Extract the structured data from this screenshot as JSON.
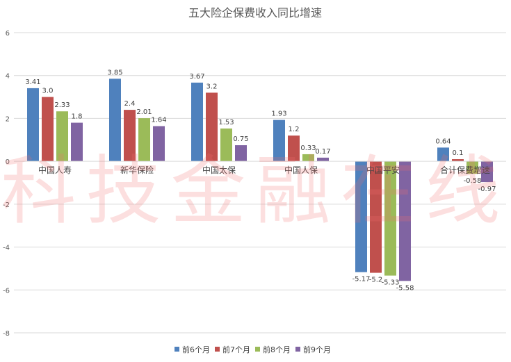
{
  "watermark": "科技金融在线",
  "chart_data": {
    "type": "bar",
    "title": "五大险企保费收入同比增速",
    "xlabel": "",
    "ylabel": "",
    "categories": [
      "中国人寿",
      "新华保险",
      "中国太保",
      "中国人保",
      "中国平安",
      "合计保费增速"
    ],
    "series": [
      {
        "name": "前6个月",
        "color": "#4f81bd",
        "values": [
          3.41,
          3.85,
          3.67,
          1.93,
          -5.17,
          0.64
        ],
        "labels": [
          "3.41",
          "3.85",
          "3.67",
          "1.93",
          "-5.17",
          "0.64"
        ]
      },
      {
        "name": "前7个月",
        "color": "#c0504d",
        "values": [
          3.0,
          2.4,
          3.2,
          1.2,
          -5.2,
          0.1
        ],
        "labels": [
          "3.0",
          "2.4",
          "3.2",
          "1.2",
          "-5.2",
          "0.1"
        ]
      },
      {
        "name": "前8个月",
        "color": "#9bbb59",
        "values": [
          2.33,
          2.01,
          1.53,
          0.33,
          -5.33,
          -0.58
        ],
        "labels": [
          "2.33",
          "2.01",
          "1.53",
          "0.33",
          "-5.33",
          "-0.58"
        ]
      },
      {
        "name": "前9个月",
        "color": "#8064a2",
        "values": [
          1.8,
          1.64,
          0.75,
          0.17,
          -5.58,
          -0.97
        ],
        "labels": [
          "1.8",
          "1.64",
          "0.75",
          "0.17",
          "-5.58",
          "-0.97"
        ]
      }
    ],
    "ylim": [
      -8,
      6
    ],
    "yticks": [
      6,
      4,
      2,
      0,
      -2,
      -4,
      -6,
      -8
    ],
    "grid": true,
    "legend": "bottom"
  }
}
